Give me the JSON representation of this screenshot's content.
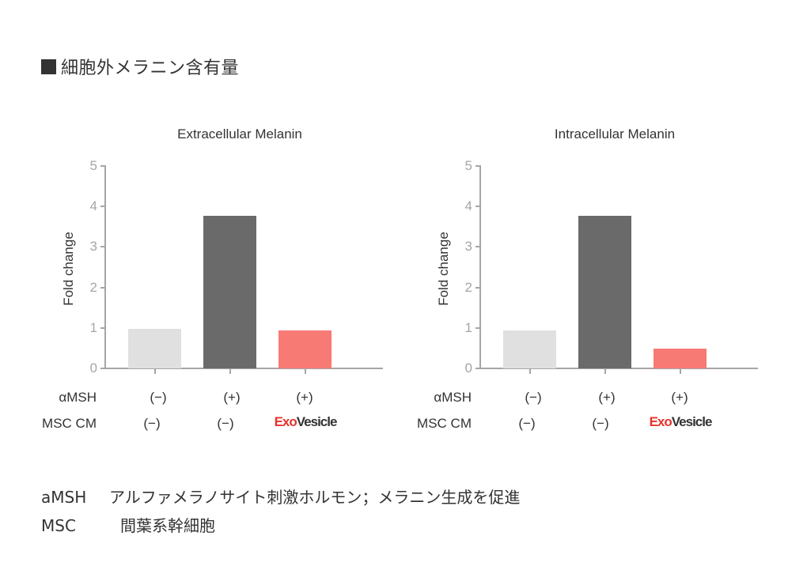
{
  "heading": {
    "icon": "filled-square-icon",
    "text": "細胞外メラニン含有量"
  },
  "colors": {
    "control": "#e0e0e0",
    "amsh": "#6a6a6a",
    "exovesicle": "#f87a74",
    "axis": "#a7a5a7",
    "brand_red": "#e8322d",
    "text": "#333333"
  },
  "charts": [
    {
      "title": "Extracellular Melanin",
      "ylabel": "Fold change",
      "yticks": [
        "0",
        "1",
        "2",
        "3",
        "4",
        "5"
      ],
      "row_labels": {
        "amsh": "αMSH",
        "msc": "MSC CM"
      },
      "conditions": [
        {
          "amsh": "(−)",
          "msc": "(−)"
        },
        {
          "amsh": "(+)",
          "msc": "(−)"
        },
        {
          "amsh": "(+)",
          "msc_brand_a": "Exo",
          "msc_brand_b": "Vesicle"
        }
      ]
    },
    {
      "title": "Intracellular Melanin",
      "ylabel": "Fold change",
      "yticks": [
        "0",
        "1",
        "2",
        "3",
        "4",
        "5"
      ],
      "row_labels": {
        "amsh": "αMSH",
        "msc": "MSC CM"
      },
      "conditions": [
        {
          "amsh": "(−)",
          "msc": "(−)"
        },
        {
          "amsh": "(+)",
          "msc": "(−)"
        },
        {
          "amsh": "(+)",
          "msc_brand_a": "Exo",
          "msc_brand_b": "Vesicle"
        }
      ]
    }
  ],
  "legend": [
    {
      "key": "aMSH",
      "desc": "アルファメラノサイト刺激ホルモン；メラニン生成を促進"
    },
    {
      "key": "MSC",
      "desc": "間葉系幹細胞"
    }
  ],
  "chart_data": [
    {
      "type": "bar",
      "title": "Extracellular Melanin",
      "xlabel": "",
      "ylabel": "Fold change",
      "ylim": [
        0,
        5
      ],
      "yticks": [
        0,
        1,
        2,
        3,
        4,
        5
      ],
      "grid": false,
      "categories": [
        "αMSH(−) / MSC CM(−)",
        "αMSH(+) / MSC CM(−)",
        "αMSH(+) / ExoVesicle"
      ],
      "values": [
        0.98,
        3.77,
        0.93
      ],
      "bar_colors": [
        "#e0e0e0",
        "#6a6a6a",
        "#f87a74"
      ]
    },
    {
      "type": "bar",
      "title": "Intracellular Melanin",
      "xlabel": "",
      "ylabel": "Fold change",
      "ylim": [
        0,
        5
      ],
      "yticks": [
        0,
        1,
        2,
        3,
        4,
        5
      ],
      "grid": false,
      "categories": [
        "αMSH(−) / MSC CM(−)",
        "αMSH(+) / MSC CM(−)",
        "αMSH(+) / ExoVesicle"
      ],
      "values": [
        0.94,
        3.77,
        0.49
      ],
      "bar_colors": [
        "#e0e0e0",
        "#6a6a6a",
        "#f87a74"
      ]
    }
  ]
}
